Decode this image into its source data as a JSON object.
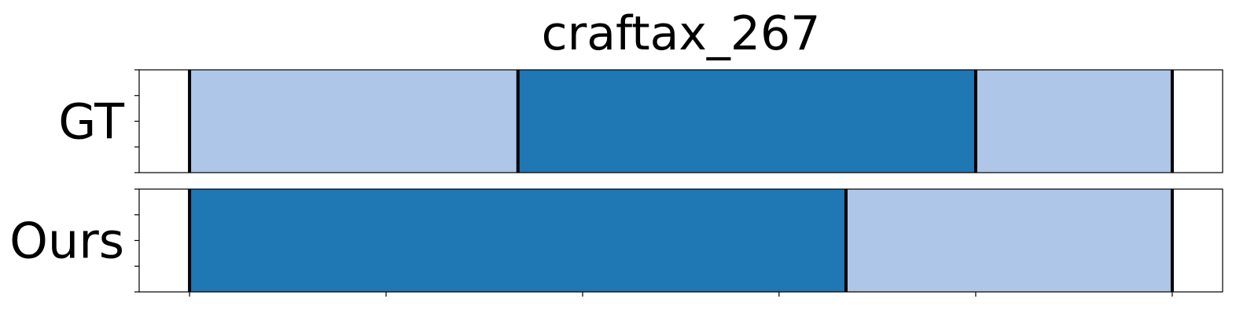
{
  "chart_data": {
    "type": "bar",
    "title": "craftax_267",
    "orientation": "horizontal-segmented",
    "xlim": [
      0,
      1
    ],
    "x_ticks": [
      0.0465,
      0.2279,
      0.4093,
      0.5906,
      0.7721,
      0.9535
    ],
    "x_tick_labels": [],
    "y_tick_count": 5,
    "grid": false,
    "legend": "none",
    "colors": {
      "light": "#aec7e8",
      "dark": "#1f77b4",
      "boundary": "#000000"
    },
    "rows": [
      {
        "label": "GT",
        "segments": [
          {
            "start": 0.0465,
            "end": 0.3496,
            "color": "light"
          },
          {
            "start": 0.3496,
            "end": 0.7721,
            "color": "dark"
          },
          {
            "start": 0.7721,
            "end": 0.9535,
            "color": "light"
          }
        ],
        "boundaries": [
          0.0465,
          0.3496,
          0.7721,
          0.9535
        ]
      },
      {
        "label": "Ours",
        "segments": [
          {
            "start": 0.0465,
            "end": 0.6524,
            "color": "dark"
          },
          {
            "start": 0.6524,
            "end": 0.9535,
            "color": "light"
          }
        ],
        "boundaries": [
          0.0465,
          0.6524,
          0.9535
        ]
      }
    ]
  }
}
